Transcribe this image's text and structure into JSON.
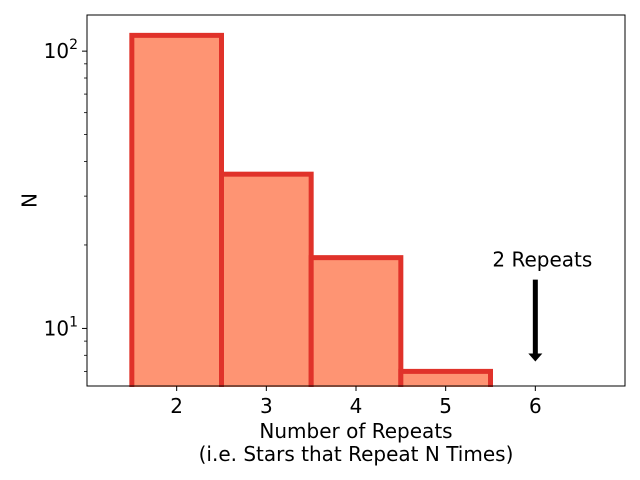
{
  "chart_data": {
    "type": "bar",
    "title": "",
    "xlabel_line1": "Number of Repeats",
    "xlabel_line2": "(i.e. Stars that Repeat N Times)",
    "ylabel": "N",
    "y_scale": "log",
    "categories": [
      "2",
      "3",
      "4",
      "5"
    ],
    "values": [
      114,
      36,
      18,
      7
    ],
    "xlim": [
      1.0,
      7.0
    ],
    "ylim": [
      6.2,
      135
    ],
    "x_ticks": [
      2,
      3,
      4,
      5,
      6
    ],
    "x_tick_labels": [
      "2",
      "3",
      "4",
      "5",
      "6"
    ],
    "y_major_ticks": [
      {
        "value": 10,
        "base": "10",
        "exponent": "1"
      },
      {
        "value": 100,
        "base": "10",
        "exponent": "2"
      }
    ],
    "grid": false,
    "bar_fill": "#fe9473",
    "bar_edge": "#e0322a",
    "annotation": {
      "text": "2 Repeats",
      "x": 6,
      "arrow_from_y": 15,
      "arrow_to_y": 7.6
    }
  }
}
